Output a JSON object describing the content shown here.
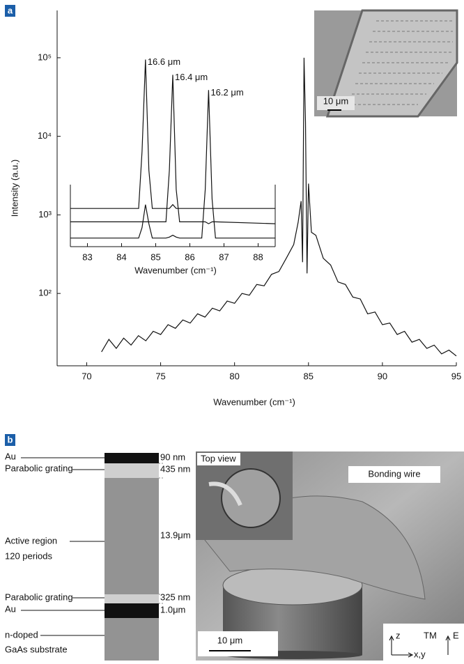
{
  "panel_labels": [
    "a",
    "b"
  ],
  "chart_data": [
    {
      "type": "line",
      "y_axis_label": "Intensity (a.u.)",
      "x_axis_label": "Wavenumber (cm⁻¹)",
      "log_scale_y": true,
      "xlim": [
        68,
        95
      ],
      "xticks": [
        70,
        75,
        80,
        85,
        90,
        95
      ],
      "ylim": [
        12,
        400000
      ],
      "yticks": [
        {
          "value": 100,
          "label": "10²"
        },
        {
          "value": 1000,
          "label": "10³"
        },
        {
          "value": 10000,
          "label": "10⁴"
        },
        {
          "value": 100000,
          "label": "10⁵"
        }
      ],
      "x": [
        71,
        71.5,
        72,
        72.5,
        73,
        73.5,
        74,
        74.5,
        75,
        75.5,
        76,
        76.5,
        77,
        77.5,
        78,
        78.5,
        79,
        79.5,
        80,
        80.5,
        81,
        81.5,
        82,
        82.5,
        83,
        83.5,
        84,
        84.3,
        84.5,
        84.6,
        84.7,
        84.8,
        84.9,
        85,
        85.2,
        85.5,
        86,
        86.5,
        87,
        87.5,
        88,
        88.5,
        89,
        89.5,
        90,
        90.5,
        91,
        91.5,
        92,
        92.5,
        93,
        93.5,
        94,
        94.5,
        95
      ],
      "series": [
        {
          "color": "#111111",
          "values": [
            18,
            26,
            20,
            27,
            22,
            29,
            25,
            33,
            30,
            40,
            36,
            46,
            42,
            55,
            50,
            65,
            60,
            80,
            75,
            100,
            95,
            130,
            125,
            175,
            190,
            280,
            420,
            800,
            1500,
            250,
            100000,
            15000,
            180,
            2500,
            600,
            550,
            280,
            230,
            140,
            130,
            90,
            85,
            55,
            58,
            40,
            42,
            30,
            33,
            24,
            26,
            20,
            22,
            17,
            19,
            16
          ]
        }
      ],
      "inset_image_scale": "10 μm"
    },
    {
      "type": "line",
      "x_axis_label": "Wavenumber (cm⁻¹)",
      "xlim": [
        82.5,
        88.5
      ],
      "xticks": [
        83,
        84,
        85,
        86,
        87,
        88
      ],
      "ylim": [
        0,
        10
      ],
      "x": [
        82.5,
        84.5,
        84.6,
        84.7,
        84.8,
        84.9,
        85.3,
        85.4,
        85.5,
        85.6,
        85.7,
        86.35,
        86.45,
        86.55,
        86.65,
        86.75,
        88.5
      ],
      "series": [
        {
          "name": "16.6 μm",
          "color": "#111111",
          "values": [
            2.0,
            2.0,
            5.0,
            9.8,
            4.0,
            2.0,
            2.0,
            2.0,
            2.2,
            2.0,
            2.0,
            2.0,
            2.0,
            2.0,
            2.0,
            2.0,
            2.0
          ]
        },
        {
          "name": "16.4 μm",
          "color": "#111111",
          "values": [
            1.3,
            1.3,
            1.3,
            1.3,
            1.3,
            1.3,
            1.3,
            4.0,
            9.0,
            3.0,
            1.3,
            1.3,
            1.3,
            1.2,
            1.3,
            1.3,
            1.2
          ]
        },
        {
          "name": "16.2 μm",
          "color": "#111111",
          "values": [
            0.45,
            0.45,
            1.0,
            2.2,
            1.2,
            0.45,
            0.45,
            0.5,
            0.6,
            0.5,
            0.45,
            0.45,
            3.0,
            8.2,
            2.5,
            0.45,
            0.45
          ]
        }
      ]
    }
  ],
  "panel_b": {
    "layers": [
      {
        "label": "Au",
        "thickness": "90 nm"
      },
      {
        "label": "Parabolic grating",
        "thickness": "435 nm"
      },
      {
        "label": "Active region",
        "label2": "120 periods",
        "thickness": "13.9μm"
      },
      {
        "label": "Parabolic grating",
        "thickness": "325 nm"
      },
      {
        "label": "Au",
        "thickness": "1.0μm"
      },
      {
        "label": "n-doped",
        "label2": "GaAs substrate"
      }
    ],
    "photo": {
      "inset": "Top view",
      "wire": "Bonding wire",
      "scale": "10 μm",
      "axis_z": "z",
      "axis_xy": "x,y",
      "mode": "TM",
      "field": "E"
    }
  }
}
